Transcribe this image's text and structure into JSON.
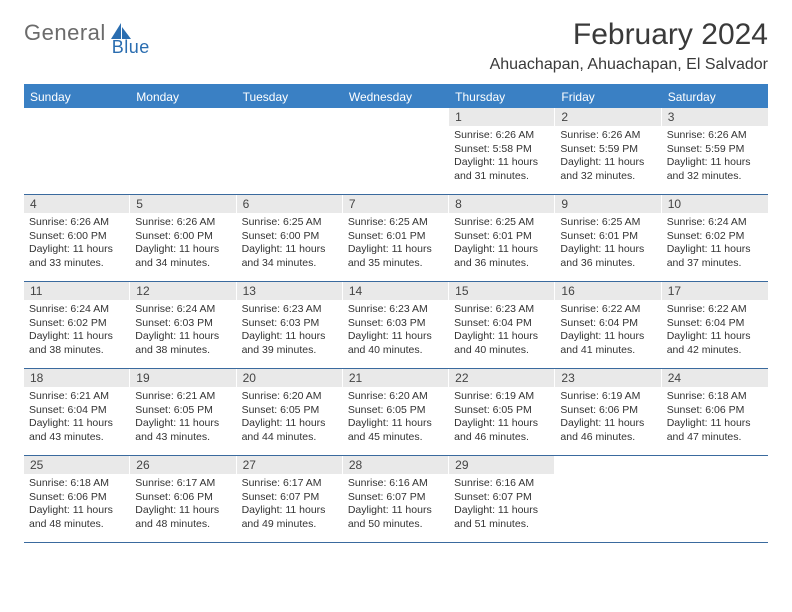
{
  "logo": {
    "part1": "General",
    "part2": "Blue"
  },
  "title": "February 2024",
  "location": "Ahuachapan, Ahuachapan, El Salvador",
  "colors": {
    "header_bg": "#3a80c4",
    "header_text": "#ffffff",
    "daynum_bg": "#e9e9e9",
    "border": "#3a6a9e",
    "logo_blue": "#2a6db0",
    "logo_gray": "#6b6b6b"
  },
  "fonts": {
    "title_size": 30,
    "location_size": 16,
    "header_size": 12,
    "body_size": 10.5
  },
  "calendar": {
    "day_names": [
      "Sunday",
      "Monday",
      "Tuesday",
      "Wednesday",
      "Thursday",
      "Friday",
      "Saturday"
    ],
    "weeks": [
      [
        null,
        null,
        null,
        null,
        {
          "n": "1",
          "sr": "Sunrise: 6:26 AM",
          "ss": "Sunset: 5:58 PM",
          "dl1": "Daylight: 11 hours",
          "dl2": "and 31 minutes."
        },
        {
          "n": "2",
          "sr": "Sunrise: 6:26 AM",
          "ss": "Sunset: 5:59 PM",
          "dl1": "Daylight: 11 hours",
          "dl2": "and 32 minutes."
        },
        {
          "n": "3",
          "sr": "Sunrise: 6:26 AM",
          "ss": "Sunset: 5:59 PM",
          "dl1": "Daylight: 11 hours",
          "dl2": "and 32 minutes."
        }
      ],
      [
        {
          "n": "4",
          "sr": "Sunrise: 6:26 AM",
          "ss": "Sunset: 6:00 PM",
          "dl1": "Daylight: 11 hours",
          "dl2": "and 33 minutes."
        },
        {
          "n": "5",
          "sr": "Sunrise: 6:26 AM",
          "ss": "Sunset: 6:00 PM",
          "dl1": "Daylight: 11 hours",
          "dl2": "and 34 minutes."
        },
        {
          "n": "6",
          "sr": "Sunrise: 6:25 AM",
          "ss": "Sunset: 6:00 PM",
          "dl1": "Daylight: 11 hours",
          "dl2": "and 34 minutes."
        },
        {
          "n": "7",
          "sr": "Sunrise: 6:25 AM",
          "ss": "Sunset: 6:01 PM",
          "dl1": "Daylight: 11 hours",
          "dl2": "and 35 minutes."
        },
        {
          "n": "8",
          "sr": "Sunrise: 6:25 AM",
          "ss": "Sunset: 6:01 PM",
          "dl1": "Daylight: 11 hours",
          "dl2": "and 36 minutes."
        },
        {
          "n": "9",
          "sr": "Sunrise: 6:25 AM",
          "ss": "Sunset: 6:01 PM",
          "dl1": "Daylight: 11 hours",
          "dl2": "and 36 minutes."
        },
        {
          "n": "10",
          "sr": "Sunrise: 6:24 AM",
          "ss": "Sunset: 6:02 PM",
          "dl1": "Daylight: 11 hours",
          "dl2": "and 37 minutes."
        }
      ],
      [
        {
          "n": "11",
          "sr": "Sunrise: 6:24 AM",
          "ss": "Sunset: 6:02 PM",
          "dl1": "Daylight: 11 hours",
          "dl2": "and 38 minutes."
        },
        {
          "n": "12",
          "sr": "Sunrise: 6:24 AM",
          "ss": "Sunset: 6:03 PM",
          "dl1": "Daylight: 11 hours",
          "dl2": "and 38 minutes."
        },
        {
          "n": "13",
          "sr": "Sunrise: 6:23 AM",
          "ss": "Sunset: 6:03 PM",
          "dl1": "Daylight: 11 hours",
          "dl2": "and 39 minutes."
        },
        {
          "n": "14",
          "sr": "Sunrise: 6:23 AM",
          "ss": "Sunset: 6:03 PM",
          "dl1": "Daylight: 11 hours",
          "dl2": "and 40 minutes."
        },
        {
          "n": "15",
          "sr": "Sunrise: 6:23 AM",
          "ss": "Sunset: 6:04 PM",
          "dl1": "Daylight: 11 hours",
          "dl2": "and 40 minutes."
        },
        {
          "n": "16",
          "sr": "Sunrise: 6:22 AM",
          "ss": "Sunset: 6:04 PM",
          "dl1": "Daylight: 11 hours",
          "dl2": "and 41 minutes."
        },
        {
          "n": "17",
          "sr": "Sunrise: 6:22 AM",
          "ss": "Sunset: 6:04 PM",
          "dl1": "Daylight: 11 hours",
          "dl2": "and 42 minutes."
        }
      ],
      [
        {
          "n": "18",
          "sr": "Sunrise: 6:21 AM",
          "ss": "Sunset: 6:04 PM",
          "dl1": "Daylight: 11 hours",
          "dl2": "and 43 minutes."
        },
        {
          "n": "19",
          "sr": "Sunrise: 6:21 AM",
          "ss": "Sunset: 6:05 PM",
          "dl1": "Daylight: 11 hours",
          "dl2": "and 43 minutes."
        },
        {
          "n": "20",
          "sr": "Sunrise: 6:20 AM",
          "ss": "Sunset: 6:05 PM",
          "dl1": "Daylight: 11 hours",
          "dl2": "and 44 minutes."
        },
        {
          "n": "21",
          "sr": "Sunrise: 6:20 AM",
          "ss": "Sunset: 6:05 PM",
          "dl1": "Daylight: 11 hours",
          "dl2": "and 45 minutes."
        },
        {
          "n": "22",
          "sr": "Sunrise: 6:19 AM",
          "ss": "Sunset: 6:05 PM",
          "dl1": "Daylight: 11 hours",
          "dl2": "and 46 minutes."
        },
        {
          "n": "23",
          "sr": "Sunrise: 6:19 AM",
          "ss": "Sunset: 6:06 PM",
          "dl1": "Daylight: 11 hours",
          "dl2": "and 46 minutes."
        },
        {
          "n": "24",
          "sr": "Sunrise: 6:18 AM",
          "ss": "Sunset: 6:06 PM",
          "dl1": "Daylight: 11 hours",
          "dl2": "and 47 minutes."
        }
      ],
      [
        {
          "n": "25",
          "sr": "Sunrise: 6:18 AM",
          "ss": "Sunset: 6:06 PM",
          "dl1": "Daylight: 11 hours",
          "dl2": "and 48 minutes."
        },
        {
          "n": "26",
          "sr": "Sunrise: 6:17 AM",
          "ss": "Sunset: 6:06 PM",
          "dl1": "Daylight: 11 hours",
          "dl2": "and 48 minutes."
        },
        {
          "n": "27",
          "sr": "Sunrise: 6:17 AM",
          "ss": "Sunset: 6:07 PM",
          "dl1": "Daylight: 11 hours",
          "dl2": "and 49 minutes."
        },
        {
          "n": "28",
          "sr": "Sunrise: 6:16 AM",
          "ss": "Sunset: 6:07 PM",
          "dl1": "Daylight: 11 hours",
          "dl2": "and 50 minutes."
        },
        {
          "n": "29",
          "sr": "Sunrise: 6:16 AM",
          "ss": "Sunset: 6:07 PM",
          "dl1": "Daylight: 11 hours",
          "dl2": "and 51 minutes."
        },
        null,
        null
      ]
    ]
  }
}
